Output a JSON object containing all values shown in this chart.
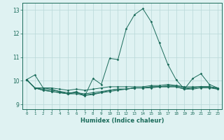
{
  "xlabel": "Humidex (Indice chaleur)",
  "bg_color": "#dff2f2",
  "grid_color": "#b8d8d8",
  "line_color": "#1a6b5a",
  "xlim": [
    -0.5,
    23.5
  ],
  "ylim": [
    8.8,
    13.3
  ],
  "yticks": [
    9,
    10,
    11,
    12,
    13
  ],
  "xticks": [
    0,
    1,
    2,
    3,
    4,
    5,
    6,
    7,
    8,
    9,
    10,
    11,
    12,
    13,
    14,
    15,
    16,
    17,
    18,
    19,
    20,
    21,
    22,
    23
  ],
  "series": [
    [
      10.05,
      10.25,
      9.7,
      9.65,
      9.55,
      9.45,
      9.55,
      9.35,
      10.1,
      9.85,
      10.95,
      10.9,
      12.2,
      12.8,
      13.05,
      12.5,
      11.6,
      10.7,
      10.05,
      9.65,
      10.1,
      10.3,
      9.85,
      9.7
    ],
    [
      10.05,
      9.7,
      9.7,
      9.7,
      9.65,
      9.6,
      9.65,
      9.6,
      9.65,
      9.7,
      9.75,
      9.75,
      9.75,
      9.75,
      9.75,
      9.8,
      9.8,
      9.85,
      9.8,
      9.75,
      9.75,
      9.75,
      9.75,
      9.7
    ],
    [
      10.05,
      9.7,
      9.65,
      9.6,
      9.55,
      9.5,
      9.5,
      9.45,
      9.5,
      9.55,
      9.6,
      9.65,
      9.65,
      9.7,
      9.7,
      9.75,
      9.75,
      9.75,
      9.75,
      9.65,
      9.7,
      9.75,
      9.75,
      9.65
    ],
    [
      10.05,
      9.7,
      9.6,
      9.55,
      9.5,
      9.45,
      9.5,
      9.4,
      9.45,
      9.5,
      9.55,
      9.6,
      9.65,
      9.7,
      9.7,
      9.75,
      9.75,
      9.8,
      9.8,
      9.7,
      9.7,
      9.75,
      9.75,
      9.7
    ],
    [
      10.05,
      9.7,
      9.6,
      9.55,
      9.5,
      9.45,
      9.45,
      9.38,
      9.42,
      9.5,
      9.6,
      9.65,
      9.65,
      9.7,
      9.7,
      9.7,
      9.75,
      9.75,
      9.75,
      9.65,
      9.65,
      9.7,
      9.7,
      9.65
    ]
  ]
}
